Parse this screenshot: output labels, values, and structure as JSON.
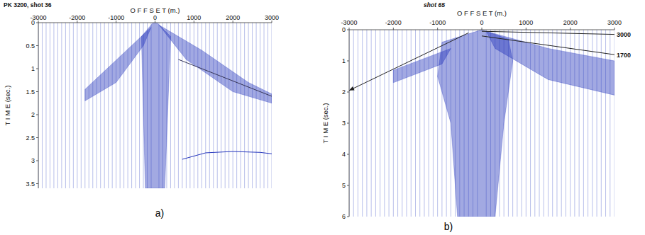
{
  "chart_data": [
    {
      "type": "seismic",
      "title": "PK 3200, shot 36",
      "label": "a)",
      "x_label": "O F F S E T (m.)",
      "y_label": "T I M E (sec.)",
      "xlim": [
        -3000,
        3000
      ],
      "ylim": [
        0,
        3.6
      ],
      "xticks": [
        -3000,
        -2000,
        -1000,
        0,
        1000,
        2000,
        3000
      ],
      "yticks": [
        0,
        0.5,
        1,
        1.5,
        2,
        2.5,
        3,
        3.5
      ],
      "color": "#5566cc",
      "traces": [
        -3000,
        -2900,
        -2800,
        -2700,
        -2600,
        -2500,
        -2400,
        -2300,
        -2200,
        -2100,
        -2000,
        -1900,
        -1800,
        -1700,
        -1600,
        -1500,
        -1400,
        -1300,
        -1200,
        -1100,
        -1000,
        -900,
        -800,
        -700,
        -600,
        -500,
        -400,
        -300,
        -200,
        -100,
        100,
        200,
        300,
        400,
        500,
        600,
        700,
        800,
        900,
        1000,
        1100,
        1200,
        1300,
        1400,
        1500,
        1600,
        1700,
        1800,
        1900,
        2000,
        2100,
        2200,
        2300,
        2400,
        2500,
        2600,
        2700,
        2800,
        2900,
        3000
      ],
      "series": [
        {
          "type": "area",
          "color": "#2233bb",
          "x": [
            -350,
            -50,
            50,
            400,
            250,
            -250
          ],
          "values": [
            0.3,
            0,
            0,
            0.3,
            3.6,
            3.6
          ]
        },
        {
          "type": "area",
          "color": "#2233bb",
          "x": [
            -100,
            -1800,
            -1800,
            -1000,
            -300
          ],
          "values": [
            0.1,
            1.45,
            1.7,
            1.3,
            0.5
          ]
        },
        {
          "type": "area",
          "color": "#2233bb",
          "x": [
            100,
            1200,
            2400,
            3000,
            3000,
            2000,
            800
          ],
          "values": [
            0.05,
            0.6,
            1.3,
            1.55,
            1.75,
            1.5,
            0.8
          ]
        },
        {
          "type": "line",
          "color": "#333355",
          "line_style": "solid",
          "x": [
            600,
            3000
          ],
          "values": [
            0.8,
            1.6
          ]
        },
        {
          "type": "line",
          "color": "#2233bb",
          "line_style": "solid",
          "x": [
            700,
            1300,
            2000,
            2700,
            3000
          ],
          "values": [
            2.97,
            2.83,
            2.8,
            2.82,
            2.85
          ]
        }
      ]
    },
    {
      "type": "seismic",
      "title": "shot 65",
      "label": "b)",
      "x_label": "O F F S E T (m.)",
      "y_label": "T I M E (sec.)",
      "xlim": [
        -3000,
        3000
      ],
      "ylim": [
        0,
        6
      ],
      "xticks": [
        -3000,
        -2000,
        -1000,
        0,
        1000,
        2000,
        3000
      ],
      "yticks": [
        0,
        1,
        2,
        3,
        4,
        5,
        6
      ],
      "color": "#5566cc",
      "traces": [
        -3000,
        -2900,
        -2800,
        -2700,
        -2600,
        -2500,
        -2400,
        -2300,
        -2200,
        -2100,
        -2000,
        -1900,
        -1800,
        -1700,
        -1600,
        -1500,
        -1400,
        -1300,
        -1200,
        -1100,
        -1000,
        -900,
        -800,
        -700,
        -600,
        -500,
        -400,
        -300,
        -200,
        -100,
        100,
        200,
        300,
        400,
        500,
        600,
        700,
        800,
        900,
        1000,
        1100,
        1200,
        1300,
        1400,
        1500,
        1600,
        1700,
        1800,
        1900,
        2000,
        2100,
        2200,
        2300,
        2400,
        2500,
        2600,
        2700,
        2800,
        2900,
        3000
      ],
      "series": [
        {
          "type": "area",
          "color": "#2233bb",
          "x": [
            0,
            -900,
            -1000,
            -700,
            -550,
            300,
            500,
            700,
            600
          ],
          "values": [
            0,
            0.4,
            1.5,
            3,
            6,
            6,
            3,
            1,
            0.3
          ]
        },
        {
          "type": "area",
          "color": "#2233bb",
          "x": [
            100,
            1500,
            3000,
            3000,
            1500,
            300
          ],
          "values": [
            0.05,
            0.6,
            1.0,
            2.1,
            1.6,
            0.6
          ]
        },
        {
          "type": "area",
          "color": "#2233bb",
          "x": [
            -700,
            -2000,
            -2000,
            -900
          ],
          "values": [
            0.6,
            1.3,
            1.7,
            1.1
          ]
        },
        {
          "type": "line",
          "color": "#222222",
          "line_style": "solid",
          "marker": "arrow",
          "x": [
            -300,
            -3000
          ],
          "values": [
            0.1,
            1.95
          ]
        },
        {
          "type": "line",
          "name": "3000",
          "color": "#222222",
          "line_style": "solid",
          "x": [
            0,
            3000
          ],
          "values": [
            0.05,
            0.15
          ]
        },
        {
          "type": "line",
          "name": "1700",
          "color": "#222222",
          "line_style": "solid",
          "x": [
            0,
            3000
          ],
          "values": [
            0.2,
            0.8
          ]
        }
      ]
    }
  ]
}
